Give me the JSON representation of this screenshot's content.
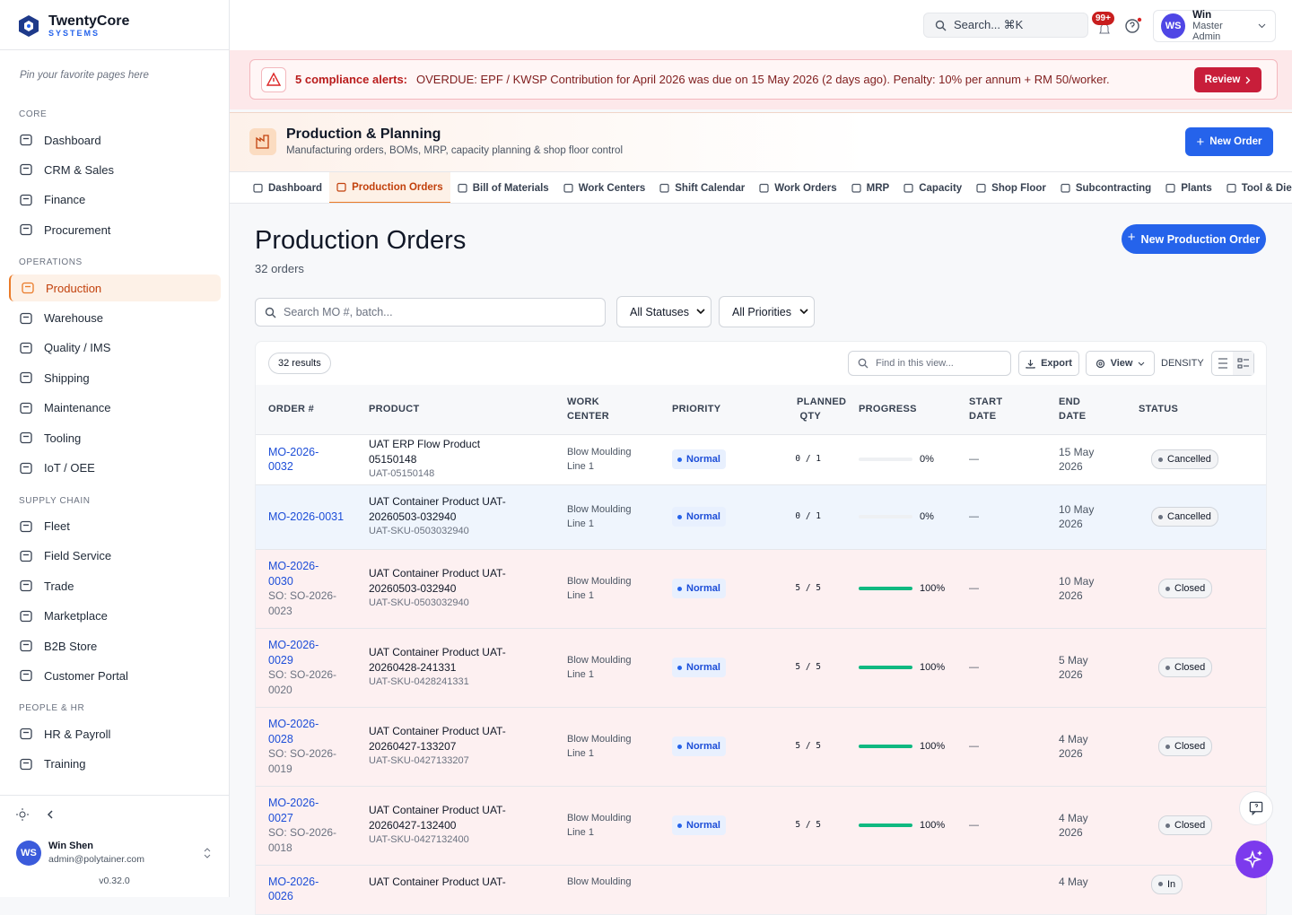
{
  "sidebar": {
    "brand": "TwentyCore",
    "brand_sub": "SYSTEMS",
    "pin_hint": "Pin your favorite pages here",
    "active": [
      1,
      0
    ],
    "sections": [
      {
        "title": "CORE",
        "items": [
          "Dashboard",
          "CRM & Sales",
          "Finance",
          "Procurement"
        ]
      },
      {
        "title": "OPERATIONS",
        "items": [
          "Production",
          "Warehouse",
          "Quality / IMS",
          "Shipping",
          "Maintenance",
          "Tooling",
          "IoT / OEE"
        ]
      },
      {
        "title": "SUPPLY CHAIN",
        "items": [
          "Fleet",
          "Field Service",
          "Trade",
          "Marketplace",
          "B2B Store",
          "Customer Portal"
        ]
      },
      {
        "title": "PEOPLE & HR",
        "items": [
          "HR & Payroll",
          "Training"
        ]
      }
    ],
    "user": {
      "initials": "WS",
      "name": "Win Shen",
      "email": "admin@polytainer.com"
    },
    "version": "v0.32.0"
  },
  "topbar": {
    "search": "Search... ⌘K",
    "badge": "99+",
    "initials": "WS",
    "name": "Win",
    "role": "Master Admin"
  },
  "alert": {
    "title": "5 compliance alerts:",
    "message": "OVERDUE: EPF / KWSP Contribution for April 2026 was due on 15 May 2026 (2 days ago). Penalty: 10% per annum + RM 50/worker.",
    "button": "Review"
  },
  "module": {
    "title": "Production & Planning",
    "subtitle": "Manufacturing orders, BOMs, MRP, capacity planning & shop floor control",
    "button": "New Order",
    "active_tab": 1,
    "tabs": [
      "Dashboard",
      "Production Orders",
      "Bill of Materials",
      "Work Centers",
      "Shift Calendar",
      "Work Orders",
      "MRP",
      "Capacity",
      "Shop Floor",
      "Subcontracting",
      "Plants",
      "Tool & Die"
    ]
  },
  "page": {
    "title": "Production Orders",
    "count": "32 orders",
    "button": "New Production Order",
    "search": "Search MO #, batch...",
    "filters": [
      "All Statuses",
      "All Priorities"
    ],
    "results": "32 results",
    "find": "Find in this view...",
    "export": "Export",
    "view": "View",
    "density": "DENSITY"
  },
  "table": {
    "columns": [
      "ORDER #",
      "PRODUCT",
      "WORK CENTER",
      "PRIORITY",
      "PLANNED QTY",
      "PROGRESS",
      "START DATE",
      "END DATE",
      "STATUS"
    ],
    "rows": [
      {
        "order": "MO-2026-0032",
        "so": null,
        "product": "UAT ERP Flow Product 05150148",
        "sku": "UAT-05150148",
        "work_center": "Blow Moulding Line 1",
        "priority": "Normal",
        "qty": "0 / 1",
        "progress": {
          "value": 0,
          "label": "0%"
        },
        "start": "—",
        "end": "15 May 2026",
        "status": "Cancelled"
      },
      {
        "order": "MO-2026-0031",
        "so": null,
        "product": "UAT Container Product UAT-20260503-032940",
        "sku": "UAT-SKU-0503032940",
        "work_center": "Blow Moulding Line 1",
        "priority": "Normal",
        "qty": "0 / 1",
        "progress": {
          "value": 0,
          "label": "0%"
        },
        "start": "—",
        "end": "10 May 2026",
        "status": "Cancelled"
      },
      {
        "order": "MO-2026-0030",
        "so": "SO: SO-2026-0023",
        "product": "UAT Container Product UAT-20260503-032940",
        "sku": "UAT-SKU-0503032940",
        "work_center": "Blow Moulding Line 1",
        "priority": "Normal",
        "qty": "5 / 5",
        "progress": {
          "value": 100,
          "label": "100%"
        },
        "start": "—",
        "end": "10 May 2026",
        "status": "Closed"
      },
      {
        "order": "MO-2026-0029",
        "so": "SO: SO-2026-0020",
        "product": "UAT Container Product UAT-20260428-241331",
        "sku": "UAT-SKU-0428241331",
        "work_center": "Blow Moulding Line 1",
        "priority": "Normal",
        "qty": "5 / 5",
        "progress": {
          "value": 100,
          "label": "100%"
        },
        "start": "—",
        "end": "5 May 2026",
        "status": "Closed"
      },
      {
        "order": "MO-2026-0028",
        "so": "SO: SO-2026-0019",
        "product": "UAT Container Product UAT-20260427-133207",
        "sku": "UAT-SKU-0427133207",
        "work_center": "Blow Moulding Line 1",
        "priority": "Normal",
        "qty": "5 / 5",
        "progress": {
          "value": 100,
          "label": "100%"
        },
        "start": "—",
        "end": "4 May 2026",
        "status": "Closed"
      },
      {
        "order": "MO-2026-0027",
        "so": "SO: SO-2026-0018",
        "product": "UAT Container Product UAT-20260427-132400",
        "sku": "UAT-SKU-0427132400",
        "work_center": "Blow Moulding Line 1",
        "priority": "Normal",
        "qty": "5 / 5",
        "progress": {
          "value": 100,
          "label": "100%"
        },
        "start": "—",
        "end": "4 May 2026",
        "status": "Closed"
      },
      {
        "order": "MO-2026-0026",
        "so": null,
        "product": "UAT Container Product UAT-",
        "sku": null,
        "work_center": "Blow Moulding",
        "priority": null,
        "qty": null,
        "progress": null,
        "start": null,
        "end": "4 May",
        "status": "In"
      }
    ]
  }
}
